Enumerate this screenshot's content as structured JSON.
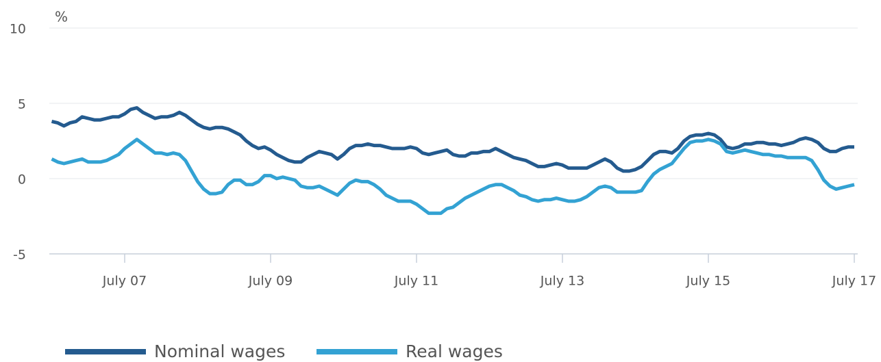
{
  "chart_data": {
    "type": "line",
    "ylabel": "%",
    "x": [
      "2006-07",
      "2006-08",
      "2006-09",
      "2006-10",
      "2006-11",
      "2006-12",
      "2007-01",
      "2007-02",
      "2007-03",
      "2007-04",
      "2007-05",
      "2007-06",
      "2007-07",
      "2007-08",
      "2007-09",
      "2007-10",
      "2007-11",
      "2007-12",
      "2008-01",
      "2008-02",
      "2008-03",
      "2008-04",
      "2008-05",
      "2008-06",
      "2008-07",
      "2008-08",
      "2008-09",
      "2008-10",
      "2008-11",
      "2008-12",
      "2009-01",
      "2009-02",
      "2009-03",
      "2009-04",
      "2009-05",
      "2009-06",
      "2009-07",
      "2009-08",
      "2009-09",
      "2009-10",
      "2009-11",
      "2009-12",
      "2010-01",
      "2010-02",
      "2010-03",
      "2010-04",
      "2010-05",
      "2010-06",
      "2010-07",
      "2010-08",
      "2010-09",
      "2010-10",
      "2010-11",
      "2010-12",
      "2011-01",
      "2011-02",
      "2011-03",
      "2011-04",
      "2011-05",
      "2011-06",
      "2011-07",
      "2011-08",
      "2011-09",
      "2011-10",
      "2011-11",
      "2011-12",
      "2012-01",
      "2012-02",
      "2012-03",
      "2012-04",
      "2012-05",
      "2012-06",
      "2012-07",
      "2012-08",
      "2012-09",
      "2012-10",
      "2012-11",
      "2012-12",
      "2013-01",
      "2013-02",
      "2013-03",
      "2013-04",
      "2013-05",
      "2013-06",
      "2013-07",
      "2013-08",
      "2013-09",
      "2013-10",
      "2013-11",
      "2013-12",
      "2014-01",
      "2014-02",
      "2014-03",
      "2014-04",
      "2014-05",
      "2014-06",
      "2014-07",
      "2014-08",
      "2014-09",
      "2014-10",
      "2014-11",
      "2014-12",
      "2015-01",
      "2015-02",
      "2015-03",
      "2015-04",
      "2015-05",
      "2015-06",
      "2015-07",
      "2015-08",
      "2015-09",
      "2015-10",
      "2015-11",
      "2015-12",
      "2016-01",
      "2016-02",
      "2016-03",
      "2016-04",
      "2016-05",
      "2016-06",
      "2016-07",
      "2016-08",
      "2016-09",
      "2016-10",
      "2016-11",
      "2016-12",
      "2017-01",
      "2017-02",
      "2017-03",
      "2017-04",
      "2017-05",
      "2017-06",
      "2017-07"
    ],
    "series": [
      {
        "name": "Nominal wages",
        "color": "#245b8f",
        "values": [
          3.8,
          3.7,
          3.5,
          3.7,
          3.8,
          4.1,
          4.0,
          3.9,
          3.9,
          4.0,
          4.1,
          4.1,
          4.3,
          4.6,
          4.7,
          4.4,
          4.2,
          4.0,
          4.1,
          4.1,
          4.2,
          4.4,
          4.2,
          3.9,
          3.6,
          3.4,
          3.3,
          3.4,
          3.4,
          3.3,
          3.1,
          2.9,
          2.5,
          2.2,
          2.0,
          2.1,
          1.9,
          1.6,
          1.4,
          1.2,
          1.1,
          1.1,
          1.4,
          1.6,
          1.8,
          1.7,
          1.6,
          1.3,
          1.6,
          2.0,
          2.2,
          2.2,
          2.3,
          2.2,
          2.2,
          2.1,
          2.0,
          2.0,
          2.0,
          2.1,
          2.0,
          1.7,
          1.6,
          1.7,
          1.8,
          1.9,
          1.6,
          1.5,
          1.5,
          1.7,
          1.7,
          1.8,
          1.8,
          2.0,
          1.8,
          1.6,
          1.4,
          1.3,
          1.2,
          1.0,
          0.8,
          0.8,
          0.9,
          1.0,
          0.9,
          0.7,
          0.7,
          0.7,
          0.7,
          0.9,
          1.1,
          1.3,
          1.1,
          0.7,
          0.5,
          0.5,
          0.6,
          0.8,
          1.2,
          1.6,
          1.8,
          1.8,
          1.7,
          2.0,
          2.5,
          2.8,
          2.9,
          2.9,
          3.0,
          2.9,
          2.6,
          2.1,
          2.0,
          2.1,
          2.3,
          2.3,
          2.4,
          2.4,
          2.3,
          2.3,
          2.2,
          2.3,
          2.4,
          2.6,
          2.7,
          2.6,
          2.4,
          2.0,
          1.8,
          1.8,
          2.0,
          2.1,
          2.1
        ]
      },
      {
        "name": "Real wages",
        "color": "#33a2d3",
        "values": [
          1.3,
          1.1,
          1.0,
          1.1,
          1.2,
          1.3,
          1.1,
          1.1,
          1.1,
          1.2,
          1.4,
          1.6,
          2.0,
          2.3,
          2.6,
          2.3,
          2.0,
          1.7,
          1.7,
          1.6,
          1.7,
          1.6,
          1.2,
          0.5,
          -0.2,
          -0.7,
          -1.0,
          -1.0,
          -0.9,
          -0.4,
          -0.1,
          -0.1,
          -0.4,
          -0.4,
          -0.2,
          0.2,
          0.2,
          0.0,
          0.1,
          0.0,
          -0.1,
          -0.5,
          -0.6,
          -0.6,
          -0.5,
          -0.7,
          -0.9,
          -1.1,
          -0.7,
          -0.3,
          -0.1,
          -0.2,
          -0.2,
          -0.4,
          -0.7,
          -1.1,
          -1.3,
          -1.5,
          -1.5,
          -1.5,
          -1.7,
          -2.0,
          -2.3,
          -2.3,
          -2.3,
          -2.0,
          -1.9,
          -1.6,
          -1.3,
          -1.1,
          -0.9,
          -0.7,
          -0.5,
          -0.4,
          -0.4,
          -0.6,
          -0.8,
          -1.1,
          -1.2,
          -1.4,
          -1.5,
          -1.4,
          -1.4,
          -1.3,
          -1.4,
          -1.5,
          -1.5,
          -1.4,
          -1.2,
          -0.9,
          -0.6,
          -0.5,
          -0.6,
          -0.9,
          -0.9,
          -0.9,
          -0.9,
          -0.8,
          -0.2,
          0.3,
          0.6,
          0.8,
          1.0,
          1.5,
          2.0,
          2.4,
          2.5,
          2.5,
          2.6,
          2.5,
          2.3,
          1.8,
          1.7,
          1.8,
          1.9,
          1.8,
          1.7,
          1.6,
          1.6,
          1.5,
          1.5,
          1.4,
          1.4,
          1.4,
          1.4,
          1.2,
          0.6,
          -0.1,
          -0.5,
          -0.7,
          -0.6,
          -0.5,
          -0.4
        ]
      }
    ],
    "xlim": [
      "2006-07",
      "2017-07"
    ],
    "xticks": [
      {
        "value": "2007-07",
        "label": "July 07"
      },
      {
        "value": "2009-07",
        "label": "July 09"
      },
      {
        "value": "2011-07",
        "label": "July 11"
      },
      {
        "value": "2013-07",
        "label": "July 13"
      },
      {
        "value": "2015-07",
        "label": "July 15"
      },
      {
        "value": "2017-07",
        "label": "July 17"
      }
    ],
    "ylim": [
      -5,
      10
    ],
    "yticks": [
      -5,
      0,
      5,
      10
    ],
    "grid": true,
    "legend": "bottom"
  }
}
